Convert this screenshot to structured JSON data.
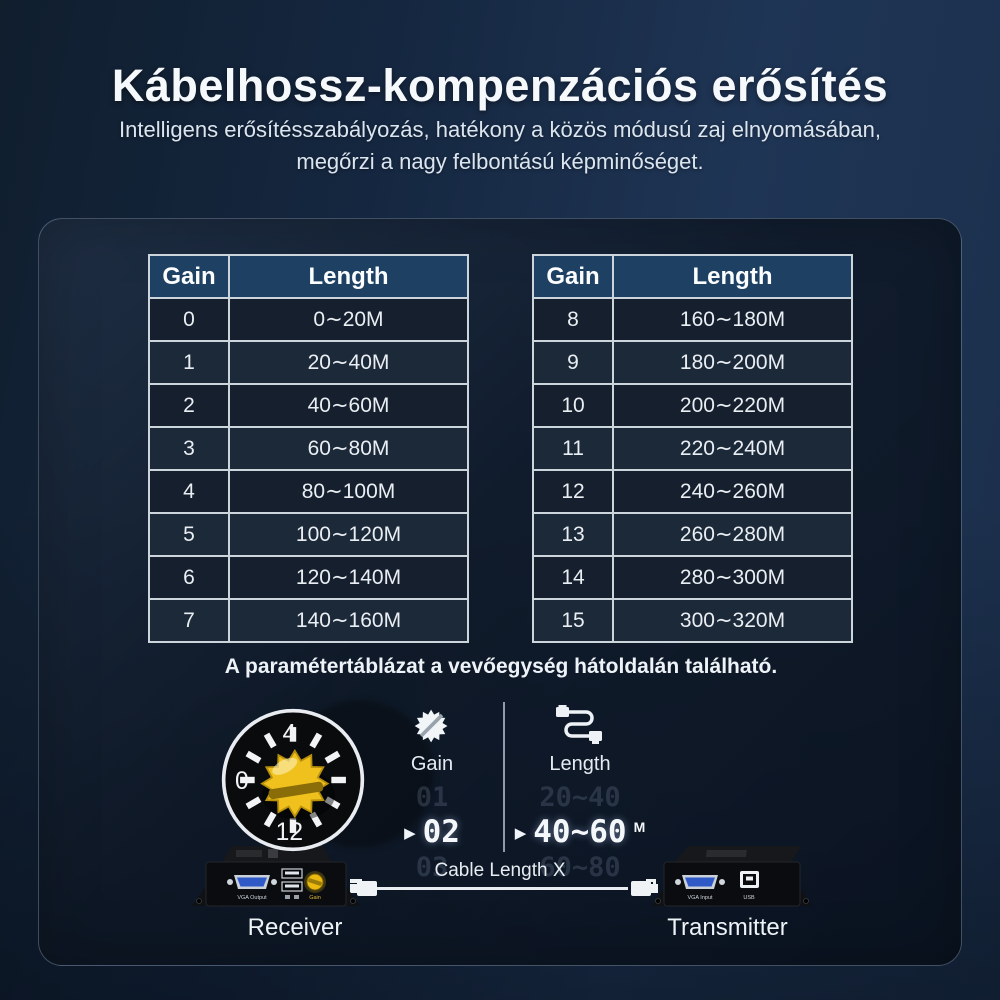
{
  "header": {
    "title": "Kábelhossz-kompenzációs erősítés",
    "subtitle_line1": "Intelligens erősítésszabályozás, hatékony a közös módusú zaj elnyomásában,",
    "subtitle_line2": "megőrzi a nagy felbontású képminőséget."
  },
  "tables": [
    {
      "headers": [
        "Gain",
        "Length"
      ],
      "rows": [
        [
          "0",
          "0∼20M"
        ],
        [
          "1",
          "20∼40M"
        ],
        [
          "2",
          "40∼60M"
        ],
        [
          "3",
          "60∼80M"
        ],
        [
          "4",
          "80∼100M"
        ],
        [
          "5",
          "100∼120M"
        ],
        [
          "6",
          "120∼140M"
        ],
        [
          "7",
          "140∼160M"
        ]
      ]
    },
    {
      "headers": [
        "Gain",
        "Length"
      ],
      "rows": [
        [
          "8",
          "160∼180M"
        ],
        [
          "9",
          "180∼200M"
        ],
        [
          "10",
          "200∼220M"
        ],
        [
          "11",
          "220∼240M"
        ],
        [
          "12",
          "240∼260M"
        ],
        [
          "13",
          "260∼280M"
        ],
        [
          "14",
          "280∼300M"
        ],
        [
          "15",
          "300∼320M"
        ]
      ]
    }
  ],
  "caption": "A paramétertáblázat a vevőegység hátoldalán található.",
  "demo": {
    "dial": {
      "top_label": "4",
      "left_label": "0",
      "bottom_label": "12"
    },
    "gain": {
      "label": "Gain",
      "prev": "01",
      "current": "02",
      "next": "03",
      "arrow": "▶"
    },
    "length": {
      "label": "Length",
      "prev": "20~40",
      "current": "40~60",
      "unit": "M",
      "next": "60~80",
      "arrow": "▶"
    }
  },
  "connection": {
    "cable_label": "Cable Length X",
    "receiver": {
      "label": "Receiver",
      "vga_label": "VGA Output",
      "knob_label": "Gain"
    },
    "transmitter": {
      "label": "Transmitter",
      "vga_label": "VGA Input",
      "usb_label": "USB"
    }
  },
  "colors": {
    "accent_yellow": "#f0c11d",
    "table_header_blue": "#1e4063",
    "background_navy": "#15273f",
    "vga_port_blue": "#3059c8"
  }
}
